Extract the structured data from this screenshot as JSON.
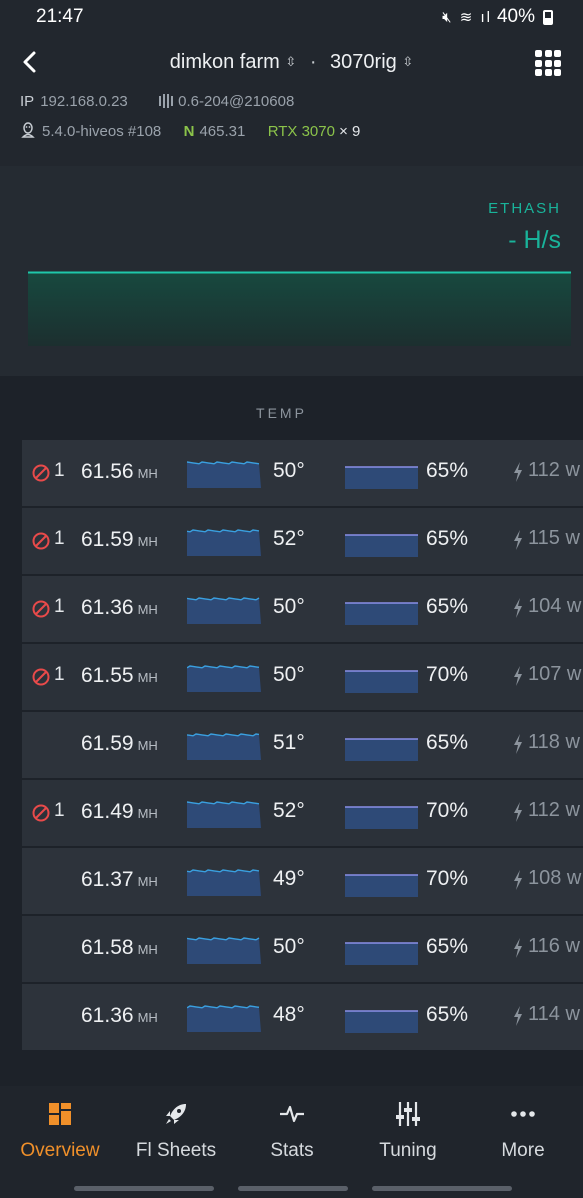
{
  "status_bar": {
    "time": "21:47",
    "battery": "40%"
  },
  "header": {
    "farm_name": "dimkon farm",
    "rig_name": "3070rig",
    "ip_label": "IP",
    "ip": "192.168.0.23",
    "version": "0.6-204@210608",
    "kernel": "5.4.0-hiveos #108",
    "nvidia_label": "N",
    "driver": "465.31",
    "gpu_model": "RTX 3070",
    "gpu_count": "× 9"
  },
  "hashrate_panel": {
    "algorithm": "ETHASH",
    "hashrate": "- H/s"
  },
  "table": {
    "column_header": "TEMP",
    "rows": [
      {
        "warning": "1",
        "hashrate": "61.56",
        "unit": "MH",
        "temp": "50°",
        "fan": "65%",
        "power": "112 w"
      },
      {
        "warning": "1",
        "hashrate": "61.59",
        "unit": "MH",
        "temp": "52°",
        "fan": "65%",
        "power": "115 w"
      },
      {
        "warning": "1",
        "hashrate": "61.36",
        "unit": "MH",
        "temp": "50°",
        "fan": "65%",
        "power": "104 w"
      },
      {
        "warning": "1",
        "hashrate": "61.55",
        "unit": "MH",
        "temp": "50°",
        "fan": "70%",
        "power": "107 w"
      },
      {
        "warning": "",
        "hashrate": "61.59",
        "unit": "MH",
        "temp": "51°",
        "fan": "65%",
        "power": "118 w"
      },
      {
        "warning": "1",
        "hashrate": "61.49",
        "unit": "MH",
        "temp": "52°",
        "fan": "70%",
        "power": "112 w"
      },
      {
        "warning": "",
        "hashrate": "61.37",
        "unit": "MH",
        "temp": "49°",
        "fan": "70%",
        "power": "108 w"
      },
      {
        "warning": "",
        "hashrate": "61.58",
        "unit": "MH",
        "temp": "50°",
        "fan": "65%",
        "power": "116 w"
      },
      {
        "warning": "",
        "hashrate": "61.36",
        "unit": "MH",
        "temp": "48°",
        "fan": "65%",
        "power": "114 w"
      }
    ]
  },
  "bottom_nav": [
    {
      "label": "Overview",
      "icon": "overview-icon",
      "active": true
    },
    {
      "label": "Fl Sheets",
      "icon": "rocket-icon",
      "active": false
    },
    {
      "label": "Stats",
      "icon": "pulse-icon",
      "active": false
    },
    {
      "label": "Tuning",
      "icon": "sliders-icon",
      "active": false
    },
    {
      "label": "More",
      "icon": "more-dots-icon",
      "active": false
    }
  ],
  "colors": {
    "accent_teal": "#19b39a",
    "nvidia_green": "#8bc34a",
    "warning_red": "#e84a4a",
    "active_orange": "#f0902a",
    "spark_blue": "#3aa0e0",
    "fan_line": "#8a8fe8"
  }
}
